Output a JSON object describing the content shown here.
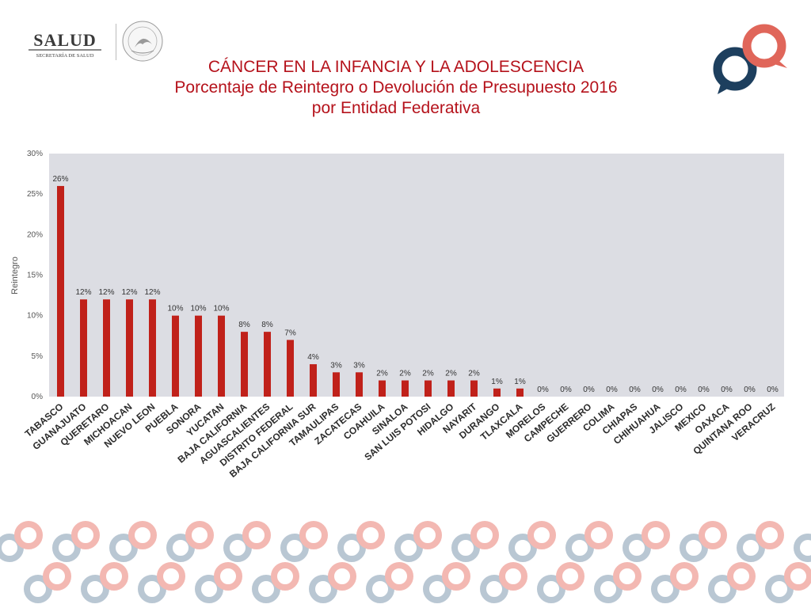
{
  "header": {
    "brand": "SALUD",
    "brand_subtitle": "SECRETARÍA DE SALUD",
    "seal_text": "ESTADOS UNIDOS MEXICANOS"
  },
  "title": {
    "line1": "CÁNCER EN LA INFANCIA Y LA ADOLESCENCIA",
    "line2": "Porcentaje de Reintegro o Devolución de Presupuesto 2016",
    "line3": "por Entidad Federativa"
  },
  "colors": {
    "title": "#b5121b",
    "bar": "#c0211a",
    "plot_bg": "#dcdde3",
    "logo_navy": "#1d3f5e",
    "logo_coral": "#e0665a"
  },
  "chart_data": {
    "type": "bar",
    "title": "",
    "xlabel": "",
    "ylabel": "Reintegro",
    "ylim": [
      0,
      30
    ],
    "y_ticks": [
      "0%",
      "5%",
      "10%",
      "15%",
      "20%",
      "25%",
      "30%"
    ],
    "grid": false,
    "categories": [
      "TABASCO",
      "GUANAJUATO",
      "QUERETARO",
      "MICHOACAN",
      "NUEVO LEON",
      "PUEBLA",
      "SONORA",
      "YUCATAN",
      "BAJA CALIFORNIA",
      "AGUASCALIENTES",
      "DISTRITO FEDERAL",
      "BAJA CALIFORNIA SUR",
      "TAMAULIPAS",
      "ZACATECAS",
      "COAHUILA",
      "SINALOA",
      "SAN LUIS POTOSI",
      "HIDALGO",
      "NAYARIT",
      "DURANGO",
      "TLAXCALA",
      "MORELOS",
      "CAMPECHE",
      "GUERRERO",
      "COLIMA",
      "CHIAPAS",
      "CHIHUAHUA",
      "JALISCO",
      "MEXICO",
      "OAXACA",
      "QUINTANA ROO",
      "VERACRUZ"
    ],
    "values": [
      26,
      12,
      12,
      12,
      12,
      10,
      10,
      10,
      8,
      8,
      7,
      4,
      3,
      3,
      2,
      2,
      2,
      2,
      2,
      1,
      1,
      0,
      0,
      0,
      0,
      0,
      0,
      0,
      0,
      0,
      0,
      0
    ],
    "data_labels": [
      "26%",
      "12%",
      "12%",
      "12%",
      "12%",
      "10%",
      "10%",
      "10%",
      "8%",
      "8%",
      "7%",
      "4%",
      "3%",
      "3%",
      "2%",
      "2%",
      "2%",
      "2%",
      "2%",
      "1%",
      "1%",
      "0%",
      "0%",
      "0%",
      "0%",
      "0%",
      "0%",
      "0%",
      "0%",
      "0%",
      "0%",
      "0%"
    ]
  }
}
